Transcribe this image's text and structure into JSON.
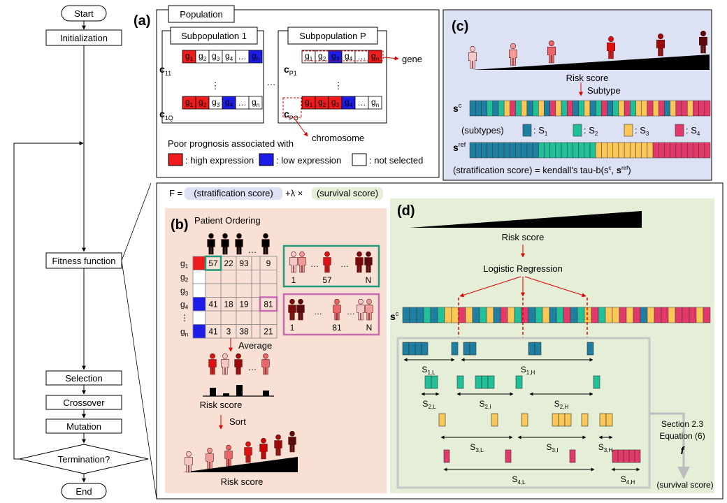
{
  "flowchart": {
    "start": "Start",
    "initialization": "Initialization",
    "fitness": "Fitness function",
    "selection": "Selection",
    "crossover": "Crossover",
    "mutation": "Mutation",
    "termination": "Termination?",
    "end": "End"
  },
  "panel_a": {
    "label": "(a)",
    "population": "Population",
    "subpop1": "Subpopulation 1",
    "subpopP": "Subpopulation P",
    "gene_callout": "gene",
    "chromosome_callout": "chromosome",
    "legend_title": "Poor prognosis associated with",
    "legend_high": ": high expression",
    "legend_low": ": low expression",
    "legend_not": ": not selected",
    "colors": {
      "high": "#ee1c1c",
      "low": "#1c1ce6",
      "not": "#ffffff"
    }
  },
  "panel_c": {
    "label": "(c)",
    "risk_score": "Risk score",
    "subtype": "Subtype",
    "subtypes_label": "(subtypes)",
    "legend": [
      ": S",
      ": S",
      ": S",
      ": S"
    ],
    "formula": "(stratification score) = kendall's tau-b(s",
    "colors": {
      "S1": "#1f7fa3",
      "S2": "#20c09a",
      "S3": "#fbc858",
      "S4": "#e2386a"
    }
  },
  "fitness_formula": {
    "prefix": "F =",
    "strat": "(stratification score)",
    "plus": "+λ ×",
    "surv": "(survival score)"
  },
  "panel_b": {
    "label": "(b)",
    "title": "Patient Ordering",
    "rows": [
      "g",
      "g",
      "g",
      "g",
      "⋮",
      "g"
    ],
    "row_subs": [
      "1",
      "2",
      "3",
      "4",
      "",
      "n"
    ],
    "cells": [
      [
        "57",
        "22",
        "93",
        "",
        "9"
      ],
      [
        "",
        "",
        "",
        "",
        ""
      ],
      [
        "",
        "",
        "",
        "",
        ""
      ],
      [
        "41",
        "18",
        "19",
        "",
        "81"
      ],
      [
        "",
        "",
        "",
        "",
        ""
      ],
      [
        "41",
        "3",
        "38",
        "",
        "21"
      ]
    ],
    "order1": [
      "1",
      "57",
      "N"
    ],
    "order2": [
      "1",
      "81",
      "N"
    ],
    "average": "Average",
    "risk_score": "Risk score",
    "sort": "Sort",
    "risk_score2": "Risk score",
    "ellipsis": "…"
  },
  "panel_d": {
    "label": "(d)",
    "risk_score": "Risk score",
    "logistic": "Logistic Regression",
    "s_label": "s",
    "ranges": [
      "S1,L",
      "S1,H",
      "S2,L",
      "S2,I",
      "S2,H",
      "S3,L",
      "S3,I",
      "S3,H",
      "S4,L",
      "S4,H"
    ],
    "section": "Section 2.3",
    "equation": "Equation (6)",
    "f": "f",
    "survival": "(survival score)"
  }
}
